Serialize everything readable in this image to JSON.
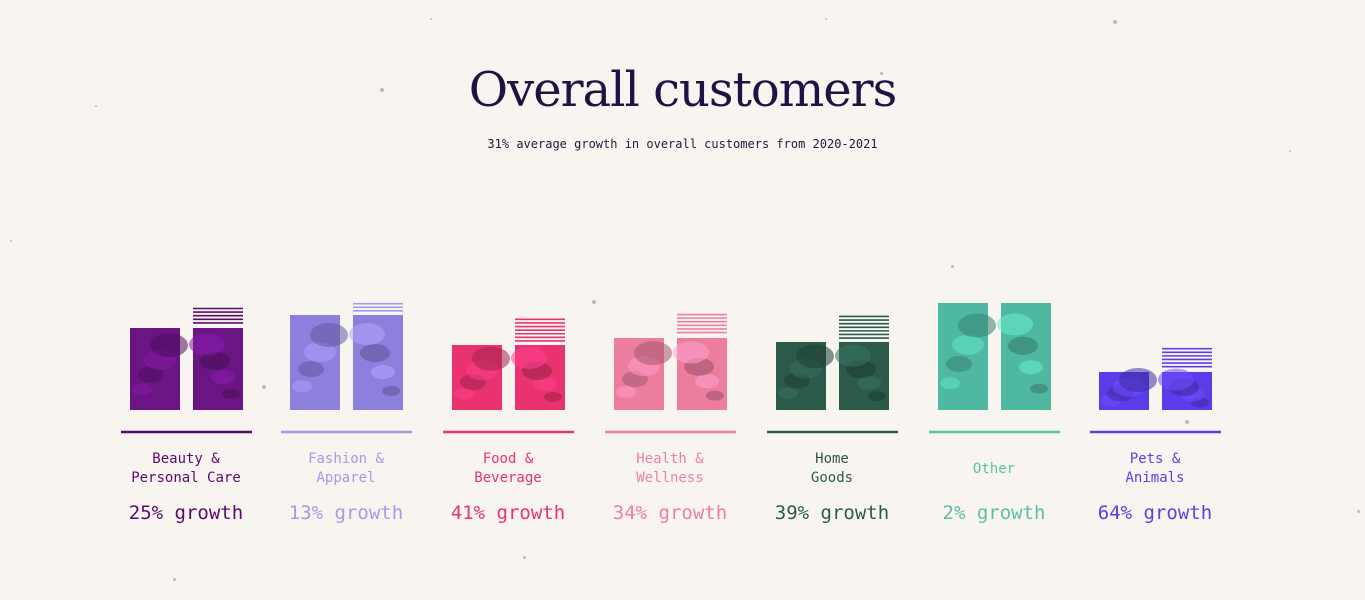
{
  "title": "Overall customers",
  "subtitle": "31% average growth in overall customers from 2020-2021",
  "chart_data": {
    "type": "bar",
    "title": "Overall customers",
    "subtitle": "31% average growth in overall customers from 2020-2021",
    "categories": [
      {
        "name": "Beauty & Personal Care",
        "label_lines": [
          "Beauty &",
          "Personal Care"
        ],
        "color": "#5a0a6b",
        "image_tint": "#6b1585",
        "prior": 1.0,
        "growth": 25,
        "growth_text": "25% growth"
      },
      {
        "name": "Fashion & Apparel",
        "label_lines": [
          "Fashion &",
          "Apparel"
        ],
        "color": "#a59ae6",
        "image_tint": "#8c7fdd",
        "prior": 1.0,
        "growth": 13,
        "growth_text": "13% growth"
      },
      {
        "name": "Food & Beverage",
        "label_lines": [
          "Food &",
          "Beverage"
        ],
        "color": "#e9326f",
        "image_tint": "#e9326f",
        "prior": 1.0,
        "growth": 41,
        "growth_text": "41% growth"
      },
      {
        "name": "Health & Wellness",
        "label_lines": [
          "Health &",
          "Wellness"
        ],
        "color": "#ee7fa3",
        "image_tint": "#ec7d9f",
        "prior": 1.0,
        "growth": 34,
        "growth_text": "34% growth"
      },
      {
        "name": "Home Goods",
        "label_lines": [
          "Home",
          "Goods"
        ],
        "color": "#2e5a4e",
        "image_tint": "#2b5a4b",
        "prior": 1.0,
        "growth": 39,
        "growth_text": "39% growth"
      },
      {
        "name": "Other",
        "label_lines": [
          "Other"
        ],
        "color": "#5bbfa7",
        "image_tint": "#4fb8a0",
        "prior": 1.0,
        "growth": 2,
        "growth_text": "2% growth"
      },
      {
        "name": "Pets & Animals",
        "label_lines": [
          "Pets &",
          "Animals"
        ],
        "color": "#5b3fe6",
        "image_tint": "#5a3de8",
        "prior": 1.0,
        "growth": 64,
        "growth_text": "64% growth"
      }
    ]
  }
}
